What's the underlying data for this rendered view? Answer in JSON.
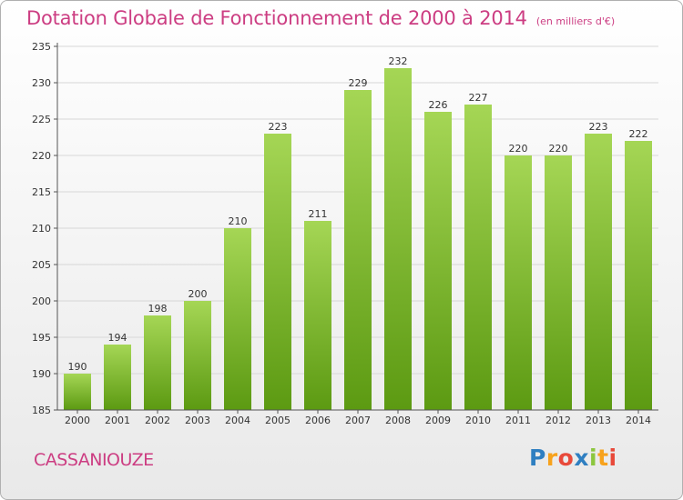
{
  "title": "Dotation Globale de Fonctionnement de 2000 à 2014",
  "subtitle": "(en milliers d'€)",
  "commune": "CASSANIOUZE",
  "logo": {
    "letters": [
      "P",
      "r",
      "o",
      "x",
      "i",
      "t",
      "i"
    ],
    "colors": [
      "#2f7fc1",
      "#f7a21c",
      "#e8493a",
      "#2f7fc1",
      "#8cc63f",
      "#f7a21c",
      "#e8493a"
    ]
  },
  "colors": {
    "bar_top": "#a5d655",
    "bar_bottom": "#5c9a12",
    "grid": "#d7d7d7",
    "axis": "#555555",
    "text": "#333333"
  },
  "chart_data": {
    "type": "bar",
    "categories": [
      "2000",
      "2001",
      "2002",
      "2003",
      "2004",
      "2005",
      "2006",
      "2007",
      "2008",
      "2009",
      "2010",
      "2011",
      "2012",
      "2013",
      "2014"
    ],
    "values": [
      190,
      194,
      198,
      200,
      210,
      223,
      211,
      229,
      232,
      226,
      227,
      220,
      220,
      223,
      222
    ],
    "yticks": [
      185,
      190,
      195,
      200,
      205,
      210,
      215,
      220,
      225,
      230,
      235
    ],
    "ylim": [
      185,
      235
    ],
    "grid": true,
    "data_labels": true
  }
}
